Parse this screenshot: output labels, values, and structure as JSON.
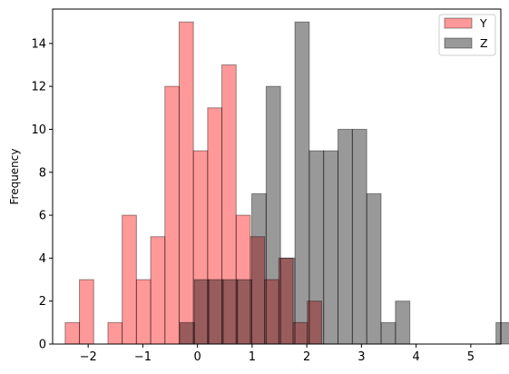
{
  "chart_data": {
    "type": "histogram",
    "title": "",
    "xlabel": "",
    "ylabel": "Frequency",
    "xlim": [
      -2.65,
      5.55
    ],
    "ylim": [
      0,
      15.6
    ],
    "xticks": [
      -2,
      -1,
      0,
      1,
      2,
      3,
      4,
      5
    ],
    "xtick_labels": [
      "−2",
      "−1",
      "0",
      "1",
      "2",
      "3",
      "4",
      "5"
    ],
    "yticks": [
      0,
      2,
      4,
      6,
      8,
      10,
      12,
      14
    ],
    "ytick_labels": [
      "0",
      "2",
      "4",
      "6",
      "8",
      "10",
      "12",
      "14"
    ],
    "grid": false,
    "legend_position": "top-right",
    "series": [
      {
        "name": "Y",
        "color": "#ff0000",
        "alpha": 0.4,
        "bin_start": -2.42,
        "bin_width": 0.2606,
        "counts": [
          1,
          3,
          0,
          1,
          6,
          3,
          5,
          12,
          15,
          9,
          11,
          13,
          6,
          5,
          3,
          4,
          1,
          2
        ]
      },
      {
        "name": "Z",
        "color": "#000000",
        "alpha": 0.4,
        "bin_start": -0.32,
        "bin_width": 0.2628,
        "counts": [
          1,
          3,
          3,
          3,
          3,
          7,
          12,
          4,
          15,
          9,
          9,
          10,
          10,
          7,
          1,
          2,
          0,
          0,
          0,
          0,
          0,
          0,
          1
        ]
      }
    ]
  }
}
